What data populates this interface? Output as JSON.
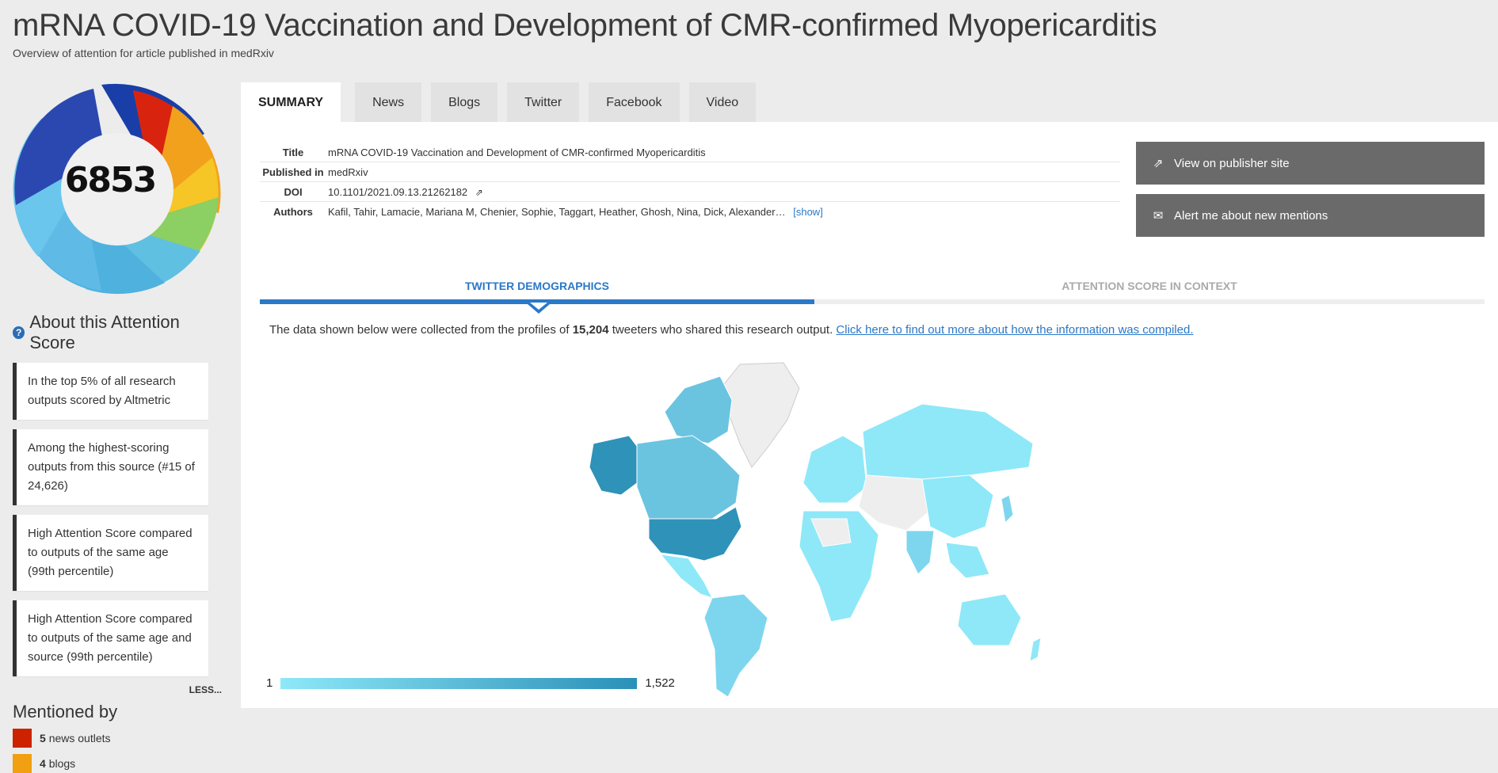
{
  "header": {
    "title": "mRNA COVID-19 Vaccination and Development of CMR-confirmed Myopericarditis",
    "subtitle": "Overview of attention for article published in medRxiv"
  },
  "score": {
    "value": "6853"
  },
  "about": {
    "title": "About this Attention Score",
    "cards": [
      "In the top 5% of all research outputs scored by Altmetric",
      "Among the highest-scoring outputs from this source (#15 of 24,626)",
      "High Attention Score compared to outputs of the same age (99th percentile)",
      "High Attention Score compared to outputs of the same age and source (99th percentile)"
    ],
    "less_label": "LESS..."
  },
  "mentioned": {
    "title": "Mentioned by",
    "items": [
      {
        "count": "5",
        "label": "news outlets",
        "color": "#cc2200"
      },
      {
        "count": "4",
        "label": "blogs",
        "color": "#f0a010"
      }
    ]
  },
  "tabs": [
    "SUMMARY",
    "News",
    "Blogs",
    "Twitter",
    "Facebook",
    "Video"
  ],
  "meta": {
    "title_label": "Title",
    "title_value": "mRNA COVID-19 Vaccination and Development of CMR-confirmed Myopericarditis",
    "published_label": "Published in",
    "published_value": "medRxiv",
    "doi_label": "DOI",
    "doi_value": "10.1101/2021.09.13.21262182",
    "authors_label": "Authors",
    "authors_value": "Kafil, Tahir, Lamacie, Mariana M, Chenier, Sophie, Taggart, Heather, Ghosh, Nina, Dick, Alexander…",
    "show_label": "[show]"
  },
  "actions": {
    "publisher": "View on publisher site",
    "alert": "Alert me about new mentions"
  },
  "subtabs": {
    "twitter": "TWITTER DEMOGRAPHICS",
    "context": "ATTENTION SCORE IN CONTEXT"
  },
  "intro": {
    "prefix": "The data shown below were collected from the profiles of",
    "count": "15,204",
    "middle": "tweeters who shared this research output.",
    "link": "Click here to find out more about how the information was compiled."
  },
  "legend": {
    "min": "1",
    "max": "1,522"
  },
  "colors": {
    "accent": "#2a78c8",
    "button": "#6a6a6a",
    "map_low": "#8ee8f8",
    "map_high": "#2a90b8",
    "map_none": "#eeeeee"
  }
}
